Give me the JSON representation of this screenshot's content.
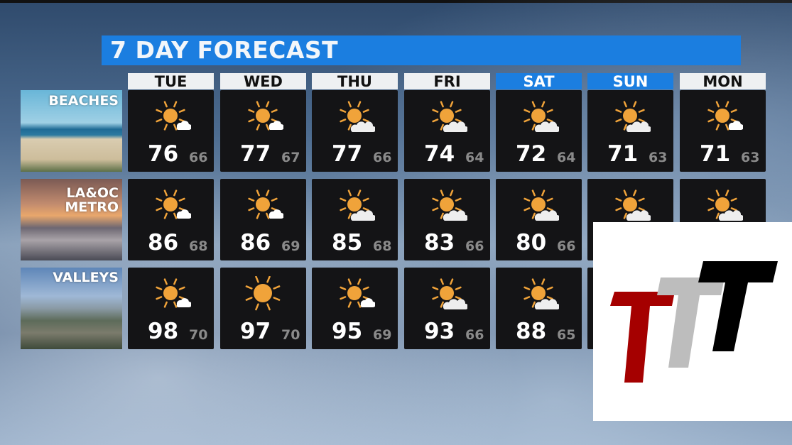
{
  "title": "7 DAY FORECAST",
  "days": [
    {
      "label": "TUE",
      "weekend": false
    },
    {
      "label": "WED",
      "weekend": false
    },
    {
      "label": "THU",
      "weekend": false
    },
    {
      "label": "FRI",
      "weekend": false
    },
    {
      "label": "SAT",
      "weekend": true
    },
    {
      "label": "SUN",
      "weekend": true
    },
    {
      "label": "MON",
      "weekend": false
    }
  ],
  "regions": [
    {
      "lines": [
        "BEACHES"
      ],
      "forecast": [
        {
          "hi": "76",
          "lo": "66",
          "icon": "sun-small-cloud-icon"
        },
        {
          "hi": "77",
          "lo": "67",
          "icon": "sun-small-cloud-icon"
        },
        {
          "hi": "77",
          "lo": "66",
          "icon": "sun-cloud-icon"
        },
        {
          "hi": "74",
          "lo": "64",
          "icon": "sun-cloud-icon"
        },
        {
          "hi": "72",
          "lo": "64",
          "icon": "sun-cloud-icon"
        },
        {
          "hi": "71",
          "lo": "63",
          "icon": "sun-cloud-icon"
        },
        {
          "hi": "71",
          "lo": "63",
          "icon": "sun-small-cloud-icon"
        }
      ]
    },
    {
      "lines": [
        "LA&OC",
        "METRO"
      ],
      "forecast": [
        {
          "hi": "86",
          "lo": "68",
          "icon": "sun-small-cloud-icon"
        },
        {
          "hi": "86",
          "lo": "69",
          "icon": "sun-small-cloud-icon"
        },
        {
          "hi": "85",
          "lo": "68",
          "icon": "sun-cloud-icon"
        },
        {
          "hi": "83",
          "lo": "66",
          "icon": "sun-cloud-icon"
        },
        {
          "hi": "80",
          "lo": "66",
          "icon": "sun-cloud-icon"
        },
        {
          "hi": null,
          "lo": null,
          "icon": "sun-cloud-icon"
        },
        {
          "hi": null,
          "lo": null,
          "icon": "sun-cloud-icon"
        }
      ]
    },
    {
      "lines": [
        "VALLEYS"
      ],
      "forecast": [
        {
          "hi": "98",
          "lo": "70",
          "icon": "sun-small-cloud-icon"
        },
        {
          "hi": "97",
          "lo": "70",
          "icon": "sunny-icon"
        },
        {
          "hi": "95",
          "lo": "69",
          "icon": "sun-small-cloud-icon"
        },
        {
          "hi": "93",
          "lo": "66",
          "icon": "sun-cloud-icon"
        },
        {
          "hi": "88",
          "lo": "65",
          "icon": "sun-cloud-icon"
        },
        {
          "hi": null,
          "lo": null,
          "icon": null
        },
        {
          "hi": null,
          "lo": null,
          "icon": null
        }
      ]
    }
  ],
  "logo": {
    "text": "TTT",
    "colors": [
      "#a50000",
      "#bdbdbd",
      "#000000"
    ]
  },
  "colors": {
    "accent": "#1b7ee0",
    "sun": "#f0a33a",
    "cell": "#141416"
  }
}
